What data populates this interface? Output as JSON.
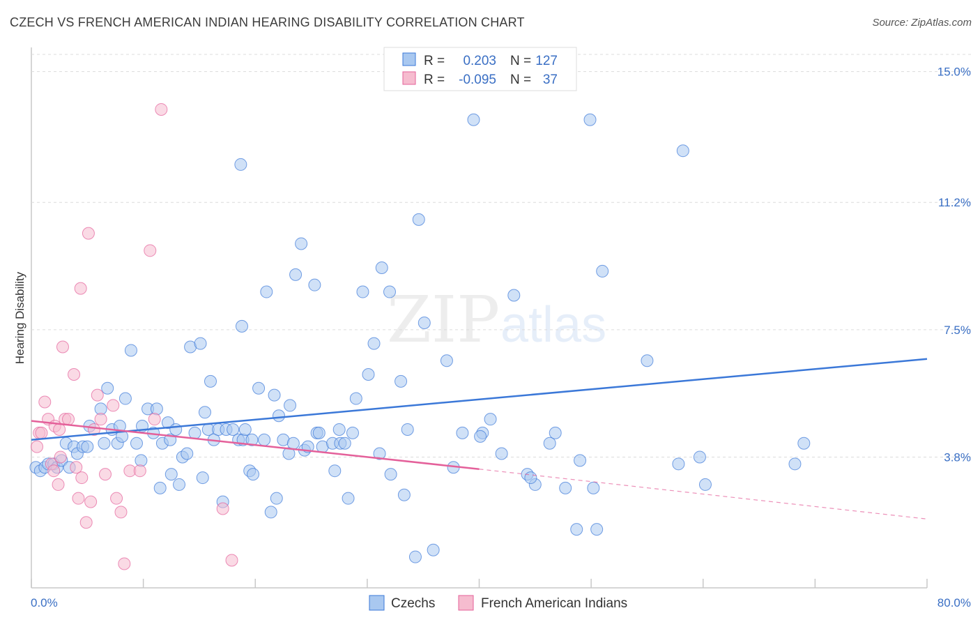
{
  "title": "CZECH VS FRENCH AMERICAN INDIAN HEARING DISABILITY CORRELATION CHART",
  "source": "Source: ZipAtlas.com",
  "watermark": "ZIPatlas",
  "colors": {
    "blue": "#3b78d8",
    "blue_fill": "#a9c8f0",
    "pink": "#e4609a",
    "pink_fill": "#f6bccf",
    "tick": "#3a6fc4",
    "grid": "#dcdcdc"
  },
  "stats": {
    "r_label": "R =",
    "n_label": "N =",
    "rows": [
      {
        "series": "Czechs",
        "r": "0.203",
        "n": "127"
      },
      {
        "series": "French American Indians",
        "r": "-0.095",
        "n": "37"
      }
    ]
  },
  "legend": [
    "Czechs",
    "French American Indians"
  ],
  "chart_data": {
    "type": "scatter",
    "title": "CZECH VS FRENCH AMERICAN INDIAN HEARING DISABILITY CORRELATION CHART",
    "ylabel": "Hearing Disability",
    "xlabel": "",
    "x_tick_labels": [
      "0.0%",
      "80.0%"
    ],
    "y_tick_labels": [
      "3.8%",
      "7.5%",
      "11.2%",
      "15.0%"
    ],
    "y_ticks": [
      3.8,
      7.5,
      11.2,
      15.0
    ],
    "xlim": [
      0,
      80
    ],
    "ylim": [
      0.0,
      15.5
    ],
    "grid": "horizontal dashed",
    "legend_position": "bottom",
    "series": [
      {
        "name": "Czechs",
        "color": "#3b78d8",
        "trend": {
          "x": [
            0,
            80
          ],
          "y": [
            4.3,
            6.65
          ]
        },
        "points": [
          [
            0.4,
            3.5
          ],
          [
            0.8,
            3.4
          ],
          [
            1.2,
            3.5
          ],
          [
            1.5,
            3.6
          ],
          [
            2.0,
            3.6
          ],
          [
            2.3,
            3.5
          ],
          [
            2.7,
            3.7
          ],
          [
            3.1,
            4.2
          ],
          [
            3.4,
            3.5
          ],
          [
            3.8,
            4.1
          ],
          [
            4.1,
            3.9
          ],
          [
            4.6,
            4.1
          ],
          [
            5.0,
            4.1
          ],
          [
            5.2,
            4.7
          ],
          [
            6.2,
            5.2
          ],
          [
            6.5,
            4.2
          ],
          [
            6.8,
            5.8
          ],
          [
            7.2,
            4.6
          ],
          [
            7.7,
            4.2
          ],
          [
            7.9,
            4.7
          ],
          [
            8.1,
            4.4
          ],
          [
            8.4,
            5.5
          ],
          [
            8.9,
            6.9
          ],
          [
            9.4,
            4.2
          ],
          [
            9.8,
            3.7
          ],
          [
            9.9,
            4.7
          ],
          [
            10.4,
            5.2
          ],
          [
            10.9,
            4.5
          ],
          [
            11.2,
            5.2
          ],
          [
            11.5,
            2.9
          ],
          [
            11.7,
            4.2
          ],
          [
            12.2,
            4.8
          ],
          [
            12.4,
            4.3
          ],
          [
            12.5,
            3.3
          ],
          [
            12.9,
            4.6
          ],
          [
            13.2,
            3.0
          ],
          [
            13.5,
            3.8
          ],
          [
            13.9,
            3.9
          ],
          [
            14.2,
            7.0
          ],
          [
            14.6,
            4.5
          ],
          [
            15.1,
            7.1
          ],
          [
            15.3,
            3.2
          ],
          [
            15.5,
            5.1
          ],
          [
            15.8,
            4.6
          ],
          [
            16.0,
            6.0
          ],
          [
            16.3,
            4.3
          ],
          [
            16.7,
            4.6
          ],
          [
            17.1,
            2.5
          ],
          [
            17.4,
            4.6
          ],
          [
            18.0,
            4.6
          ],
          [
            18.5,
            4.3
          ],
          [
            18.8,
            7.6
          ],
          [
            18.9,
            4.3
          ],
          [
            19.1,
            4.6
          ],
          [
            19.5,
            3.4
          ],
          [
            19.7,
            4.3
          ],
          [
            18.7,
            12.3
          ],
          [
            19.8,
            3.3
          ],
          [
            20.3,
            5.8
          ],
          [
            20.8,
            4.3
          ],
          [
            21.0,
            8.6
          ],
          [
            21.4,
            2.2
          ],
          [
            21.7,
            5.6
          ],
          [
            21.9,
            2.6
          ],
          [
            22.1,
            5.0
          ],
          [
            22.5,
            4.3
          ],
          [
            23.0,
            3.9
          ],
          [
            23.1,
            5.3
          ],
          [
            23.4,
            4.2
          ],
          [
            23.6,
            9.1
          ],
          [
            24.1,
            10.0
          ],
          [
            24.4,
            4.0
          ],
          [
            24.7,
            4.1
          ],
          [
            25.3,
            8.8
          ],
          [
            25.5,
            4.5
          ],
          [
            25.7,
            4.5
          ],
          [
            26.0,
            4.1
          ],
          [
            26.9,
            4.2
          ],
          [
            27.1,
            3.4
          ],
          [
            27.5,
            4.6
          ],
          [
            27.6,
            4.2
          ],
          [
            28.0,
            4.2
          ],
          [
            28.3,
            2.6
          ],
          [
            28.7,
            4.5
          ],
          [
            29.0,
            5.5
          ],
          [
            29.6,
            8.6
          ],
          [
            30.1,
            6.2
          ],
          [
            30.6,
            7.1
          ],
          [
            31.1,
            3.9
          ],
          [
            31.3,
            9.3
          ],
          [
            32.0,
            8.6
          ],
          [
            32.1,
            3.3
          ],
          [
            33.0,
            6.0
          ],
          [
            33.3,
            2.7
          ],
          [
            33.6,
            4.6
          ],
          [
            34.3,
            0.9
          ],
          [
            34.6,
            10.7
          ],
          [
            35.1,
            7.7
          ],
          [
            35.9,
            1.1
          ],
          [
            37.1,
            6.6
          ],
          [
            37.7,
            3.5
          ],
          [
            38.5,
            4.5
          ],
          [
            39.5,
            13.6
          ],
          [
            40.3,
            4.5
          ],
          [
            41.0,
            4.9
          ],
          [
            42.0,
            3.9
          ],
          [
            43.1,
            8.5
          ],
          [
            44.3,
            3.3
          ],
          [
            45.0,
            3.0
          ],
          [
            46.3,
            4.2
          ],
          [
            46.8,
            4.5
          ],
          [
            47.7,
            2.9
          ],
          [
            48.7,
            1.7
          ],
          [
            49.0,
            3.7
          ],
          [
            50.2,
            2.9
          ],
          [
            50.5,
            1.7
          ],
          [
            49.9,
            13.6
          ],
          [
            51.0,
            9.2
          ],
          [
            55.0,
            6.6
          ],
          [
            57.8,
            3.6
          ],
          [
            58.2,
            12.7
          ],
          [
            59.7,
            3.8
          ],
          [
            68.2,
            3.6
          ],
          [
            69.0,
            4.2
          ],
          [
            60.2,
            3.0
          ],
          [
            44.6,
            3.2
          ],
          [
            40.1,
            4.4
          ]
        ]
      },
      {
        "name": "French American Indians",
        "color": "#e4609a",
        "trend": {
          "x": [
            0,
            40
          ],
          "y": [
            4.85,
            3.45
          ]
        },
        "trend_dashed": {
          "x": [
            40,
            80
          ],
          "y": [
            3.45,
            2.0
          ]
        },
        "points": [
          [
            0.5,
            4.1
          ],
          [
            0.7,
            4.5
          ],
          [
            0.9,
            4.5
          ],
          [
            1.2,
            5.4
          ],
          [
            1.5,
            4.9
          ],
          [
            1.8,
            3.6
          ],
          [
            2.0,
            3.4
          ],
          [
            2.1,
            4.7
          ],
          [
            2.4,
            3.0
          ],
          [
            2.5,
            4.6
          ],
          [
            2.6,
            3.8
          ],
          [
            2.8,
            7.0
          ],
          [
            3.0,
            4.9
          ],
          [
            3.3,
            4.9
          ],
          [
            3.8,
            6.2
          ],
          [
            4.0,
            3.5
          ],
          [
            4.2,
            2.6
          ],
          [
            4.4,
            8.7
          ],
          [
            4.5,
            3.2
          ],
          [
            4.9,
            1.9
          ],
          [
            5.1,
            10.3
          ],
          [
            5.3,
            2.5
          ],
          [
            5.6,
            4.6
          ],
          [
            5.9,
            5.6
          ],
          [
            6.2,
            4.9
          ],
          [
            6.6,
            3.3
          ],
          [
            7.3,
            5.3
          ],
          [
            7.6,
            2.6
          ],
          [
            8.0,
            2.2
          ],
          [
            8.3,
            0.7
          ],
          [
            8.8,
            3.4
          ],
          [
            9.7,
            3.4
          ],
          [
            10.6,
            9.8
          ],
          [
            11.0,
            4.9
          ],
          [
            11.6,
            13.9
          ],
          [
            17.1,
            2.3
          ],
          [
            17.9,
            0.8
          ]
        ]
      }
    ]
  }
}
